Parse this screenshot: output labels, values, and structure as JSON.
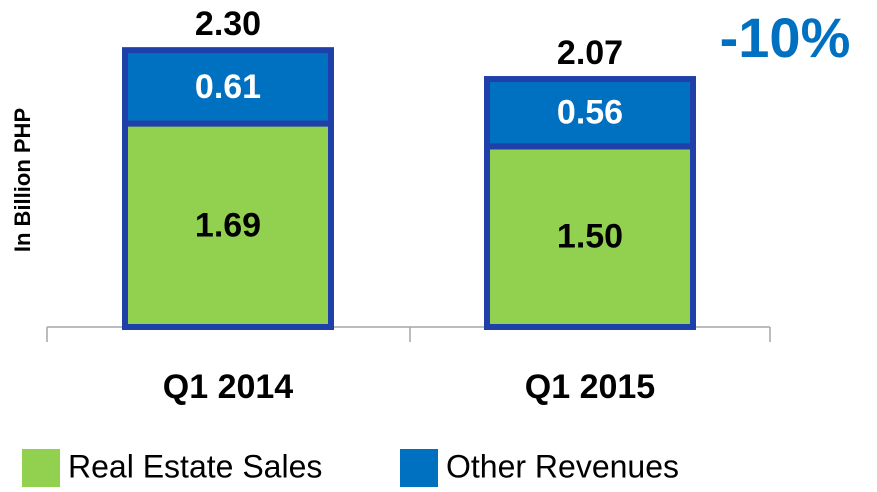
{
  "chart_data": {
    "type": "stacked-bar",
    "ylabel": "In Billion PHP",
    "annotation": "-10%",
    "categories": [
      "Q1 2014",
      "Q1 2015"
    ],
    "series": [
      {
        "name": "Real Estate Sales",
        "color": "#92d050",
        "values": [
          1.69,
          1.5
        ],
        "value_labels": [
          "1.69",
          "1.50"
        ]
      },
      {
        "name": "Other Revenues",
        "color": "#0070c0",
        "values": [
          0.61,
          0.56
        ],
        "value_labels": [
          "0.61",
          "0.56"
        ]
      }
    ],
    "totals": {
      "values": [
        2.3,
        2.07
      ],
      "value_labels": [
        "2.30",
        "2.07"
      ]
    },
    "ylim": [
      0,
      2.7
    ]
  }
}
